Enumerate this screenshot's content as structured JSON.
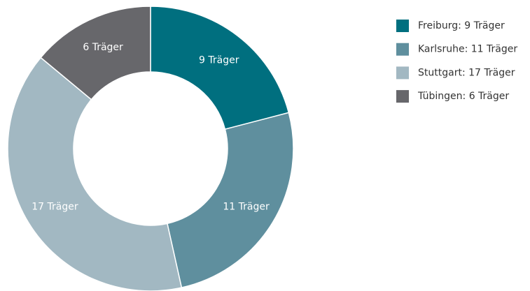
{
  "chart_data": {
    "type": "donut",
    "categories": [
      "Freiburg: 9 Träger",
      "Karlsruhe: 11 Träger",
      "Stuttgart: 17 Träger",
      "Tübingen: 6 Träger"
    ],
    "values": [
      9,
      11,
      17,
      6
    ],
    "value_labels": [
      "9 Träger",
      "11 Träger",
      "17 Träger",
      "6 Träger"
    ],
    "colors": [
      "#006f7f",
      "#5f8f9e",
      "#a2b8c2",
      "#67676b"
    ],
    "legend": "top-right"
  }
}
